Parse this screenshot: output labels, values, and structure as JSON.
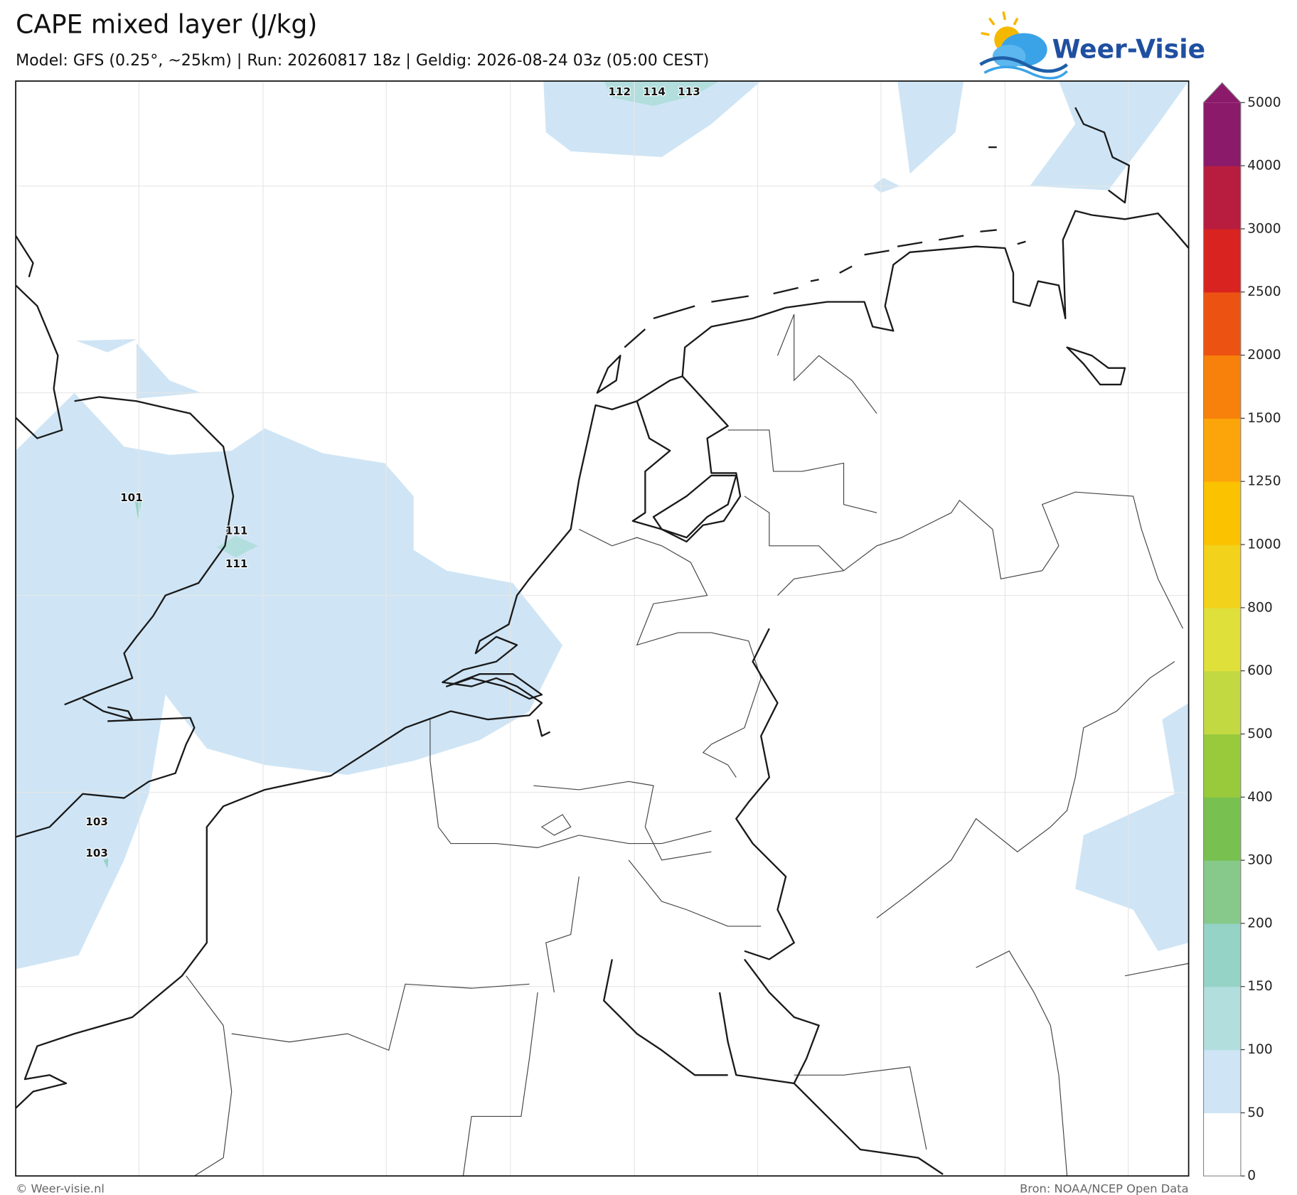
{
  "title": "CAPE mixed layer (J/kg)",
  "subtitle": "Model: GFS (0.25°, ~25km)  |  Run: 20260817 18z  |  Geldig: 2026-08-24 03z (05:00 CEST)",
  "logo": "Weer-Visie",
  "map_labels": [
    "112",
    "114",
    "113",
    "101",
    "111",
    "111",
    "103",
    "103"
  ],
  "colorbar": {
    "ticks": [
      0,
      50,
      100,
      150,
      200,
      300,
      400,
      500,
      600,
      800,
      1000,
      1250,
      1500,
      2000,
      2500,
      3000,
      4000,
      5000
    ],
    "colors": [
      "#ffffff",
      "#cfe5f5",
      "#b2dede",
      "#95d3c7",
      "#86c98a",
      "#78c150",
      "#98ca3c",
      "#c2d942",
      "#dfe03a",
      "#f2d21a",
      "#fbc200",
      "#fca50a",
      "#f7810a",
      "#ec5313",
      "#d92320",
      "#b81d40",
      "#8b1a6b"
    ]
  },
  "footer_left": "© Weer-visie.nl",
  "footer_right": "Bron: NOAA/NCEP Open Data"
}
